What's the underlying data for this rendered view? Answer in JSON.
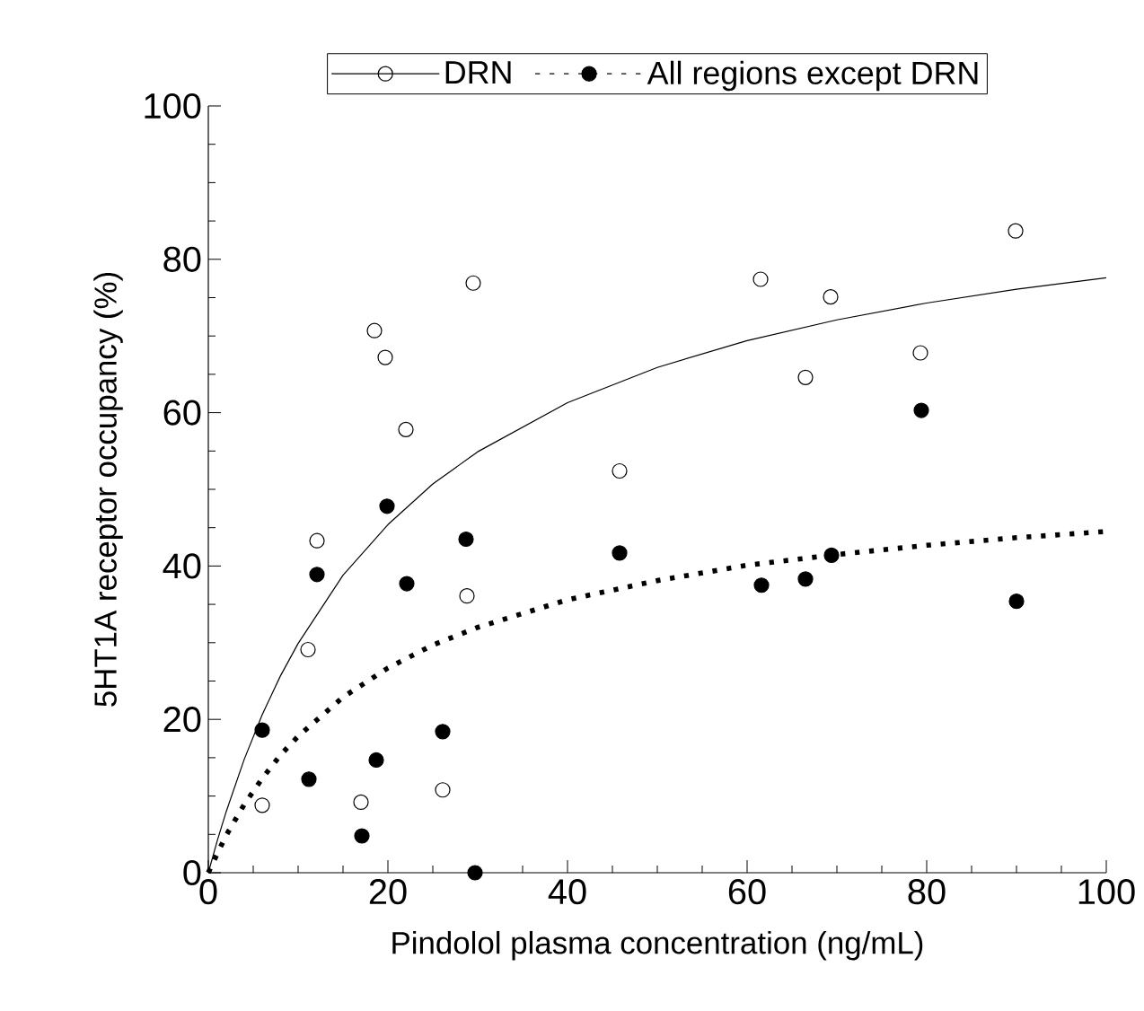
{
  "chart_data": {
    "type": "scatter",
    "xlabel": "Pindolol plasma concentration (ng/mL)",
    "ylabel": "5HT1A receptor occupancy (%)",
    "xlim": [
      0,
      100
    ],
    "ylim": [
      0,
      100
    ],
    "xticks": [
      0,
      20,
      40,
      60,
      80,
      100
    ],
    "yticks": [
      0,
      20,
      40,
      60,
      80,
      100
    ],
    "legend": "top",
    "grid": false,
    "series": [
      {
        "name": "DRN",
        "marker": "circle",
        "color": "#000000",
        "x": [
          6.0,
          11.1,
          12.1,
          17.0,
          18.5,
          19.7,
          22.0,
          26.1,
          28.8,
          29.5,
          45.8,
          61.5,
          66.5,
          69.3,
          79.3,
          89.9
        ],
        "values": [
          8.8,
          29.1,
          43.3,
          9.2,
          70.7,
          67.2,
          57.8,
          10.8,
          36.1,
          76.9,
          52.4,
          77.4,
          64.6,
          75.1,
          67.8,
          83.7
        ]
      },
      {
        "type": "line",
        "line_style": "solid",
        "marker": "none",
        "color": "#000000",
        "x": [
          0,
          1,
          2,
          4,
          6,
          8,
          10,
          15,
          20,
          25,
          30,
          40,
          50,
          60,
          70,
          80,
          90,
          100
        ],
        "values": [
          0,
          4.2,
          8.0,
          14.8,
          20.6,
          25.6,
          29.9,
          38.8,
          45.4,
          50.7,
          54.9,
          61.3,
          65.9,
          69.4,
          72.1,
          74.3,
          76.1,
          77.6
        ]
      },
      {
        "name": "All regions except DRN",
        "marker": "dot",
        "color": "#000000",
        "x": [
          6.0,
          11.2,
          12.1,
          17.1,
          18.7,
          19.9,
          22.1,
          26.1,
          28.7,
          29.7,
          45.8,
          61.6,
          66.5,
          69.4,
          79.4,
          90.0
        ],
        "values": [
          18.6,
          12.2,
          38.9,
          4.8,
          14.7,
          47.8,
          37.7,
          18.4,
          43.5,
          0,
          41.7,
          37.5,
          38.3,
          41.4,
          60.3,
          35.4
        ]
      },
      {
        "type": "line",
        "line_style": "dotted",
        "marker": "none",
        "color": "#000000",
        "x": [
          0,
          1,
          2,
          4,
          6,
          8,
          10,
          15,
          20,
          25,
          30,
          40,
          50,
          60,
          70,
          80,
          90,
          100
        ],
        "values": [
          0,
          2.5,
          4.9,
          8.9,
          12.3,
          15.3,
          17.8,
          22.9,
          26.7,
          29.7,
          32.0,
          35.6,
          38.1,
          40.1,
          41.5,
          42.7,
          43.7,
          44.5
        ]
      }
    ]
  }
}
